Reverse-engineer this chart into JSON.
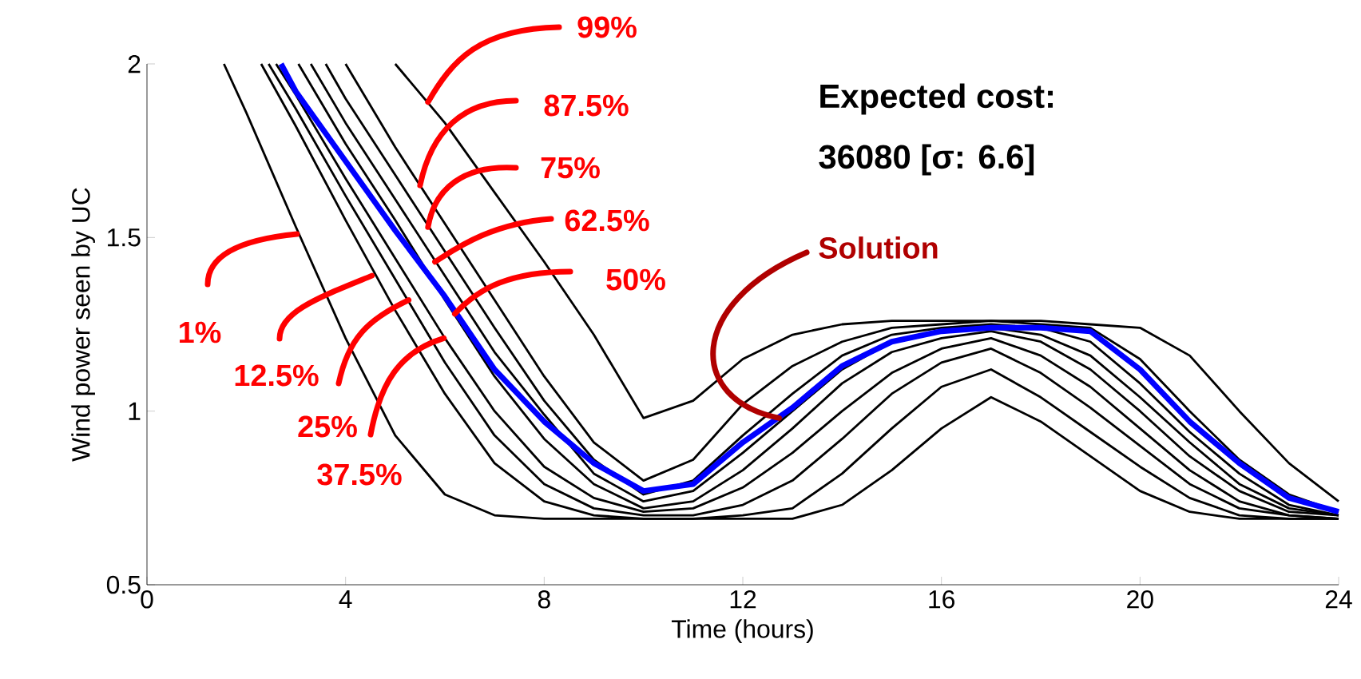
{
  "chart_data": {
    "type": "line",
    "xlabel": "Time (hours)",
    "ylabel": "Wind power seen by UC",
    "xlim": [
      0,
      24
    ],
    "ylim": [
      0.5,
      2
    ],
    "xticks": [
      0,
      4,
      8,
      12,
      16,
      20,
      24
    ],
    "yticks": [
      0.5,
      1,
      1.5,
      2
    ],
    "annotations": [
      {
        "text": "1%",
        "x": 3.02,
        "y": 1.51
      },
      {
        "text": "12.5%",
        "x": 4.53,
        "y": 1.39
      },
      {
        "text": "25%",
        "x": 5.27,
        "y": 1.32
      },
      {
        "text": "37.5%",
        "x": 5.98,
        "y": 1.21
      },
      {
        "text": "50%",
        "x": 6.2,
        "y": 1.28
      },
      {
        "text": "62.5%",
        "x": 5.8,
        "y": 1.43
      },
      {
        "text": "75%",
        "x": 5.66,
        "y": 1.53
      },
      {
        "text": "87.5%",
        "x": 5.5,
        "y": 1.65
      },
      {
        "text": "99%",
        "x": 5.66,
        "y": 1.89
      },
      {
        "text": "Solution",
        "x": 12.73,
        "y": 0.98
      },
      "Expected cost:",
      "36080 [σ: 6.6]"
    ],
    "series": [
      {
        "color": "#000000",
        "x": [
          1.55,
          2,
          3,
          4,
          5,
          6,
          7,
          8,
          9,
          10,
          11,
          12,
          13,
          14,
          15,
          16,
          17,
          18,
          19,
          20,
          21,
          22,
          23,
          24
        ],
        "values": [
          2.0,
          1.86,
          1.53,
          1.21,
          0.93,
          0.76,
          0.7,
          0.69,
          0.69,
          0.69,
          0.69,
          0.69,
          0.69,
          0.73,
          0.83,
          0.95,
          1.04,
          0.97,
          0.87,
          0.77,
          0.71,
          0.69,
          0.69,
          0.69
        ]
      },
      {
        "color": "#000000",
        "x": [
          2.3,
          3,
          4,
          5,
          6,
          7,
          8,
          9,
          10,
          11,
          12,
          13,
          14,
          15,
          16,
          17,
          18,
          19,
          20,
          21,
          22,
          23,
          24
        ],
        "values": [
          2.0,
          1.82,
          1.55,
          1.29,
          1.05,
          0.85,
          0.74,
          0.7,
          0.69,
          0.69,
          0.7,
          0.72,
          0.82,
          0.95,
          1.07,
          1.12,
          1.04,
          0.94,
          0.84,
          0.75,
          0.7,
          0.69,
          0.69
        ]
      },
      {
        "color": "#000000",
        "x": [
          2.45,
          3,
          4,
          5,
          6,
          7,
          8,
          9,
          10,
          11,
          12,
          13,
          14,
          15,
          16,
          17,
          18,
          19,
          20,
          21,
          22,
          23,
          24
        ],
        "values": [
          2.0,
          1.87,
          1.62,
          1.38,
          1.14,
          0.93,
          0.79,
          0.72,
          0.7,
          0.7,
          0.73,
          0.8,
          0.92,
          1.05,
          1.14,
          1.18,
          1.11,
          1.01,
          0.9,
          0.79,
          0.72,
          0.7,
          0.69
        ]
      },
      {
        "color": "#000000",
        "x": [
          2.6,
          3,
          4,
          5,
          6,
          7,
          8,
          9,
          10,
          11,
          12,
          13,
          14,
          15,
          16,
          17,
          18,
          19,
          20,
          21,
          22,
          23,
          24
        ],
        "values": [
          2.0,
          1.91,
          1.67,
          1.44,
          1.21,
          1.0,
          0.84,
          0.75,
          0.71,
          0.72,
          0.78,
          0.88,
          1.0,
          1.11,
          1.18,
          1.21,
          1.16,
          1.07,
          0.95,
          0.83,
          0.74,
          0.7,
          0.69
        ]
      },
      {
        "color": "#000000",
        "x": [
          3.05,
          4,
          5,
          6,
          7,
          8,
          9,
          10,
          11,
          12,
          13,
          14,
          15,
          16,
          17,
          18,
          19,
          20,
          21,
          22,
          23,
          24
        ],
        "values": [
          2.0,
          1.77,
          1.55,
          1.32,
          1.1,
          0.92,
          0.79,
          0.72,
          0.74,
          0.83,
          0.95,
          1.08,
          1.17,
          1.21,
          1.23,
          1.2,
          1.12,
          1.0,
          0.87,
          0.77,
          0.71,
          0.7
        ]
      },
      {
        "color": "#000000",
        "x": [
          3.3,
          4,
          5,
          6,
          7,
          8,
          9,
          10,
          11,
          12,
          13,
          14,
          15,
          16,
          17,
          18,
          19,
          20,
          21,
          22,
          23,
          24
        ],
        "values": [
          2.0,
          1.83,
          1.61,
          1.39,
          1.17,
          0.99,
          0.82,
          0.74,
          0.77,
          0.88,
          1.0,
          1.12,
          1.2,
          1.23,
          1.24,
          1.22,
          1.16,
          1.04,
          0.91,
          0.79,
          0.72,
          0.7
        ]
      },
      {
        "color": "#000000",
        "x": [
          3.6,
          4,
          5,
          6,
          7,
          8,
          9,
          10,
          11,
          12,
          13,
          14,
          15,
          16,
          17,
          18,
          19,
          20,
          21,
          22,
          23,
          24
        ],
        "values": [
          2.0,
          1.9,
          1.68,
          1.46,
          1.24,
          1.03,
          0.86,
          0.76,
          0.8,
          0.93,
          1.05,
          1.16,
          1.22,
          1.24,
          1.25,
          1.24,
          1.2,
          1.08,
          0.94,
          0.82,
          0.73,
          0.7
        ]
      },
      {
        "color": "#000000",
        "x": [
          4,
          5,
          6,
          7,
          8,
          9,
          10,
          11,
          12,
          13,
          14,
          15,
          16,
          17,
          18,
          19,
          20,
          21,
          22,
          23,
          24
        ],
        "values": [
          2.0,
          1.76,
          1.54,
          1.32,
          1.1,
          0.91,
          0.8,
          0.86,
          1.02,
          1.13,
          1.2,
          1.24,
          1.25,
          1.26,
          1.25,
          1.24,
          1.15,
          1.0,
          0.86,
          0.76,
          0.71
        ]
      },
      {
        "color": "#000000",
        "x": [
          5,
          6,
          7,
          8,
          9,
          10,
          11,
          12,
          13,
          14,
          15,
          16,
          17,
          18,
          19,
          20,
          21,
          22,
          23,
          24
        ],
        "values": [
          2.0,
          1.83,
          1.63,
          1.43,
          1.22,
          0.98,
          1.03,
          1.15,
          1.22,
          1.25,
          1.26,
          1.26,
          1.26,
          1.26,
          1.25,
          1.24,
          1.16,
          1.0,
          0.85,
          0.74
        ]
      },
      {
        "color": "#0000ff",
        "x": [
          2.7,
          3,
          4,
          5,
          6,
          7,
          8,
          9,
          10,
          11,
          12,
          13,
          14,
          15,
          16,
          17,
          18,
          19,
          20,
          21,
          22,
          23,
          24
        ],
        "values": [
          2.0,
          1.92,
          1.72,
          1.52,
          1.33,
          1.12,
          0.97,
          0.85,
          0.77,
          0.79,
          0.91,
          1.01,
          1.13,
          1.2,
          1.23,
          1.24,
          1.24,
          1.23,
          1.12,
          0.97,
          0.85,
          0.75,
          0.71
        ]
      }
    ]
  }
}
